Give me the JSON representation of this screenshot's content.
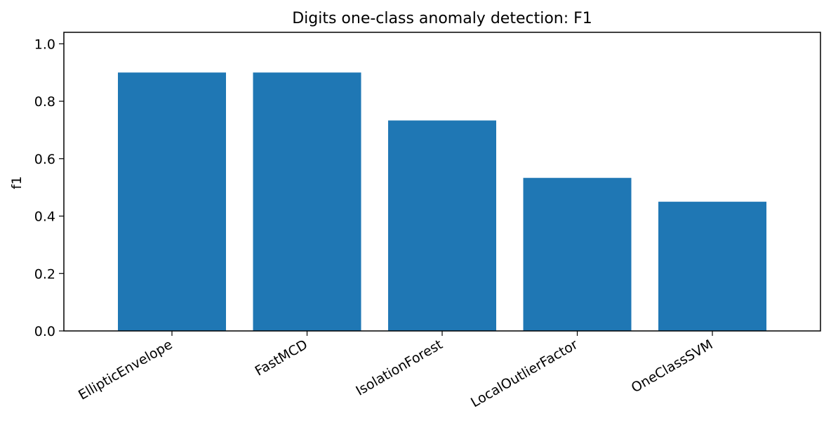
{
  "chart_data": {
    "type": "bar",
    "title": "Digits one-class anomaly detection: F1",
    "xlabel": "",
    "ylabel": "f1",
    "categories": [
      "EllipticEnvelope",
      "FastMCD",
      "IsolationForest",
      "LocalOutlierFactor",
      "OneClassSVM"
    ],
    "values": [
      0.9,
      0.9,
      0.733,
      0.533,
      0.45
    ],
    "ylim": [
      0,
      1.04
    ],
    "yticks": [
      "0.0",
      "0.2",
      "0.4",
      "0.6",
      "0.8",
      "1.0"
    ],
    "bar_color": "#1f77b4",
    "grid": false,
    "legend": "none"
  }
}
